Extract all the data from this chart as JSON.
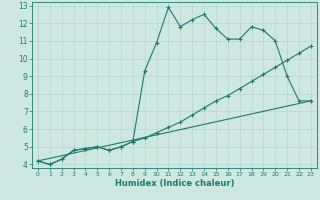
{
  "xlabel": "Humidex (Indice chaleur)",
  "bg_color": "#cde8e0",
  "line_color": "#1a7a6e",
  "grid_color": "#b8d4cc",
  "xlim": [
    -0.5,
    23.5
  ],
  "ylim": [
    3.8,
    13.2
  ],
  "xticks": [
    0,
    1,
    2,
    3,
    4,
    5,
    6,
    7,
    8,
    9,
    10,
    11,
    12,
    13,
    14,
    15,
    16,
    17,
    18,
    19,
    20,
    21,
    22,
    23
  ],
  "yticks": [
    4,
    5,
    6,
    7,
    8,
    9,
    10,
    11,
    12,
    13
  ],
  "curve1_x": [
    0,
    1,
    2,
    3,
    4,
    5,
    6,
    7,
    8,
    9,
    10,
    11,
    12,
    13,
    14,
    15,
    16,
    17,
    18,
    19,
    20,
    21,
    22,
    23
  ],
  "curve1_y": [
    4.2,
    4.0,
    4.3,
    4.8,
    4.9,
    5.0,
    4.8,
    5.0,
    5.3,
    9.3,
    10.9,
    12.9,
    11.8,
    12.2,
    12.5,
    11.7,
    11.1,
    11.1,
    11.8,
    11.6,
    11.0,
    9.0,
    7.6,
    7.6
  ],
  "curve2_x": [
    0,
    1,
    2,
    3,
    4,
    5,
    6,
    7,
    8,
    9,
    10,
    11,
    12,
    13,
    14,
    15,
    16,
    17,
    18,
    19,
    20,
    21,
    22,
    23
  ],
  "curve2_y": [
    4.2,
    4.0,
    4.3,
    4.8,
    4.9,
    5.0,
    4.8,
    5.0,
    5.3,
    5.5,
    5.8,
    6.1,
    6.4,
    6.8,
    7.2,
    7.6,
    7.9,
    8.3,
    8.7,
    9.1,
    9.5,
    9.9,
    10.3,
    10.7
  ],
  "curve3_x": [
    0,
    23
  ],
  "curve3_y": [
    4.2,
    7.6
  ]
}
